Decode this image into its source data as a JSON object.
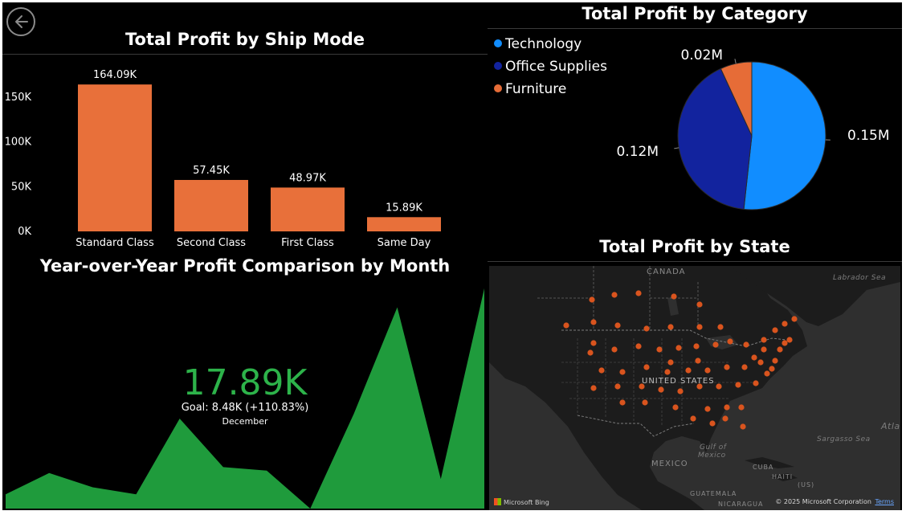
{
  "ship_mode": {
    "title": "Total Profit by Ship Mode",
    "y_ticks": [
      "150K",
      "100K",
      "50K",
      "0K"
    ],
    "chart_data": {
      "type": "bar",
      "categories": [
        "Standard Class",
        "Second Class",
        "First Class",
        "Same Day"
      ],
      "values": [
        164.09,
        57.45,
        48.97,
        15.89
      ],
      "value_labels": [
        "164.09K",
        "57.45K",
        "48.97K",
        "15.89K"
      ],
      "unit": "K",
      "ylim": [
        0,
        175
      ],
      "y_tick_values": [
        150,
        100,
        50,
        0
      ],
      "color": "#e8703a",
      "grid": false
    }
  },
  "category": {
    "title": "Total Profit by Category",
    "chart_data": {
      "type": "pie",
      "labels": [
        "Technology",
        "Office Supplies",
        "Furniture"
      ],
      "values": [
        0.15,
        0.12,
        0.02
      ],
      "value_labels": [
        "0.15M",
        "0.12M",
        "0.02M"
      ],
      "colors": [
        "#118dff",
        "#12239e",
        "#e66c37"
      ],
      "legend_position": "top-left"
    }
  },
  "yoy": {
    "title": "Year-over-Year Profit Comparison by Month",
    "kpi_value": "17.89K",
    "goal_text": "Goal: 8.48K (+110.83%)",
    "period": "December",
    "color": "#1f9b3c",
    "chart_data": {
      "type": "area",
      "values": [
        1.2,
        3.0,
        1.8,
        1.2,
        7.6,
        3.5,
        3.2,
        0.0,
        8.0,
        17.0,
        2.5,
        18.6
      ],
      "ylim": [
        0,
        19
      ]
    }
  },
  "state": {
    "title": "Total Profit by State",
    "map_labels": {
      "canada": "CANADA",
      "labrador": "Labrador Sea",
      "usa": "UNITED STATES",
      "gulf1": "Gulf of",
      "gulf2": "Mexico",
      "sargasso": "Sargasso Sea",
      "atlantic": "Atla",
      "mexico": "MEXICO",
      "cuba": "CUBA",
      "haiti": "HAITI",
      "us": "(US)",
      "guatemala": "GUATEMALA",
      "nicaragua": "NICARAGUA"
    },
    "bing": "Microsoft Bing",
    "copyright": "© 2025 Microsoft Corporation",
    "terms": "Terms",
    "marker_color": "#d9541e"
  }
}
